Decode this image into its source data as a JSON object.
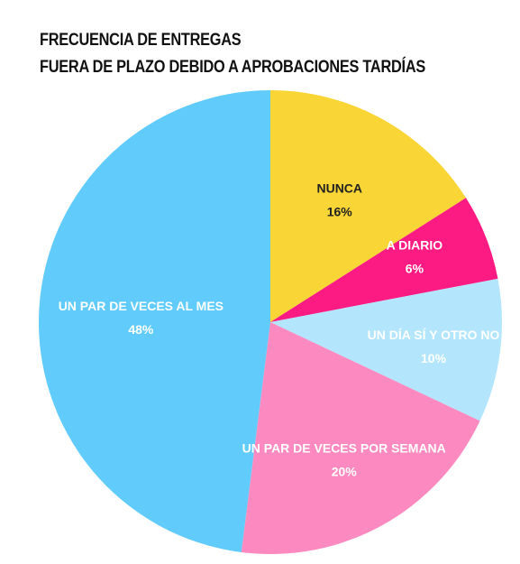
{
  "chart_data": {
    "type": "pie",
    "title_lines": [
      "FRECUENCIA DE ENTREGAS",
      "FUERA DE PLAZO DEBIDO A APROBACIONES TARDÍAS"
    ],
    "slices": [
      {
        "label": "NUNCA",
        "value": 16,
        "value_label": "16%",
        "color": "#F9D535",
        "text_color": "#222222"
      },
      {
        "label": "A DIARIO",
        "value": 6,
        "value_label": "6%",
        "color": "#FC1B83",
        "text_color": "#ffffff"
      },
      {
        "label": "UN DÍA SÍ Y OTRO NO",
        "value": 10,
        "value_label": "10%",
        "color": "#B3E6FC",
        "text_color": "#ffffff"
      },
      {
        "label": "UN PAR DE VECES POR SEMANA",
        "value": 20,
        "value_label": "20%",
        "color": "#FC8AC0",
        "text_color": "#ffffff"
      },
      {
        "label": "UN PAR DE VECES AL MES",
        "value": 48,
        "value_label": "48%",
        "color": "#61CCFC",
        "text_color": "#ffffff"
      }
    ],
    "start": "12 o'clock",
    "direction": "clockwise"
  }
}
